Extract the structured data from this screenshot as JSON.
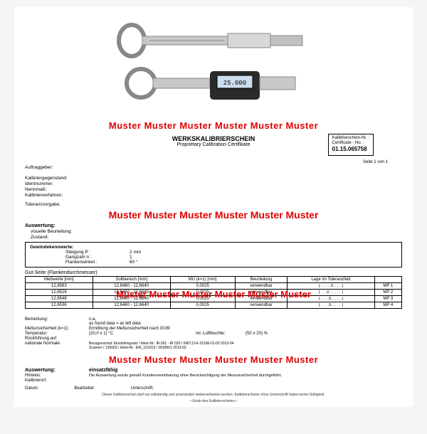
{
  "watermark": "Muster Muster Muster Muster Muster Muster",
  "watermark2": "Muster Muster  Muster Muster Muster Muster",
  "header": {
    "title": "WERKSKALIBRIERSCHEIN",
    "subtitle": "Proprietary Calibration Certifikate",
    "cert_label1": "Kalibrierschein-Nr. :",
    "cert_label2": "Certificate - No. :",
    "cert_no": "01.15.065758",
    "page": "Seite 1 von 1"
  },
  "fields": {
    "f1": "Auftraggeber:",
    "f2": "Kalibriergegenstand:",
    "f3": "Identnummer:",
    "f4": "Nennmaß:",
    "f5": "Kalibrierverfahren:",
    "f6": "Toleranzvorgabe:"
  },
  "auswertung_label": "Auswertung:",
  "vis_label": "visuelle Beurteilung:",
  "zustand_label": "Zustand:",
  "gewindek_label": "Gewindekennwerte:",
  "gew": {
    "r1l": "Steigung P :",
    "r1v": "2 mm",
    "r2l": "Gangzahl n :",
    "r2v": "1",
    "r3l": "Flankenwinkel :",
    "r3v": "60 °"
  },
  "gutseite": "Gut-Seite (Flankendurchmesser)",
  "table": {
    "headers": [
      "Meßwerte [mm]",
      "Sollbereich [mm]",
      "MU (k=1) [mm]",
      "Beurteilung",
      "Lage im Toleranzfeld"
    ],
    "rows": [
      [
        "12,6563",
        "12,6460 - 12,6640",
        "0,0025",
        "verwendbar",
        "|. . . . . .X. . . . .|",
        "MP 1"
      ],
      [
        "12,6526",
        "12,6460 - 12,6640",
        "0,0025",
        "verwendbar",
        "|. . . .X. . . . . . .|",
        "MP 2"
      ],
      [
        "12,6548",
        "12,6460 - 12,6640",
        "0,0025",
        "verwendbar",
        "|. . . . .X. . . . . .|",
        "MP 3"
      ],
      [
        "12,6536",
        "12,6460 - 12,6640",
        "0,0025",
        "verwendbar",
        "|. . . . .X. . . . . .|",
        "MP 4"
      ]
    ]
  },
  "footer": {
    "bem_l": "Bemerkung:",
    "bem_v": "n.a.\nas found data = as left data",
    "mu_l": "Meßunsicherheit (k=1);",
    "mu_v": "Ermittlung der Meßunsicherheit nach GUM",
    "temp_l": "Temperatur:",
    "temp_v": "(20,0 ± 1) °C",
    "luft_l": "rel. Luftfeuchte:",
    "luft_v": "(50 ± 20) %",
    "ruck_l": "Rückführung auf",
    "nat_l": "nationale Normale:",
    "nat_v": "Bezugsnormal: Einstellringsatz / Ident-Nr.: IR 001 - IR 020 / 0407,D-K-15186-01-00 2013-04\nScanner / 135003 / Ident-Nr.: EW_101019 / 2818901 2013-03",
    "ausw_l": "Auswertung:",
    "ausw_v": "einsatzfähig",
    "hinw_l": "Hinweis:",
    "hinw_v": "Die Auswertung wurde gemäß Kundenvereinbarung ohne Berücksichtigung der Messunsicherheit durchgeführt.",
    "kal_l": "Kalibrierort:",
    "dat_l": "Datum:",
    "bear_l": "Bearbeiter:",
    "unt_l": "Unterschrift:",
    "disclaimer": "Dieser Kalibrierschein darf nur vollständig und unverändert weiterverbreitet werden. Kalibrierscheine ohne Unterschrift haben keine Gültigkeit.",
    "ende": "—Ende des Kalibrierscheins—"
  },
  "colors": {
    "red": "#e00000",
    "black": "#000000",
    "bg": "#ffffff"
  }
}
